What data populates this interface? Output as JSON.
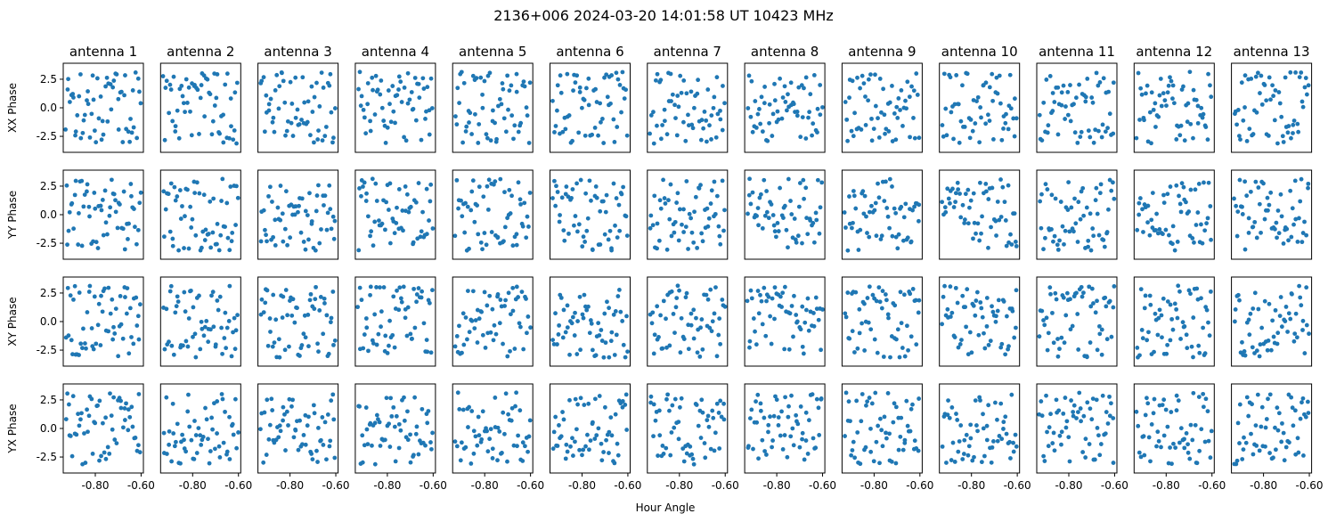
{
  "figure": {
    "suptitle": "2136+006  2024-03-20 14:01:58 UT  10423 MHz",
    "xlabel": "Hour Angle"
  },
  "chart_data": {
    "type": "scatter",
    "layout": "grid",
    "columns": [
      "antenna 1",
      "antenna 2",
      "antenna 3",
      "antenna 4",
      "antenna 5",
      "antenna 6",
      "antenna 7",
      "antenna 8",
      "antenna 9",
      "antenna 10",
      "antenna 11",
      "antenna 12",
      "antenna 13"
    ],
    "rows": [
      "XX Phase",
      "YY Phase",
      "XY Phase",
      "YX Phase"
    ],
    "xlim": [
      -0.94,
      -0.59
    ],
    "ylim": [
      -3.9,
      3.9
    ],
    "xticks": [
      -0.8,
      -0.6
    ],
    "xtick_labels": [
      "-0.80",
      "-0.60"
    ],
    "yticks": [
      2.5,
      0.0,
      -2.5
    ],
    "ytick_labels": [
      "2.5",
      "0.0",
      "-2.5"
    ],
    "point_color": "#1f77b4",
    "points_per_panel": 60,
    "x_range": [
      -0.93,
      -0.6
    ],
    "y_range": [
      -3.14,
      3.14
    ],
    "note_values": "phase values are pseudo-random noise spread uniformly across x_range and y_range"
  }
}
